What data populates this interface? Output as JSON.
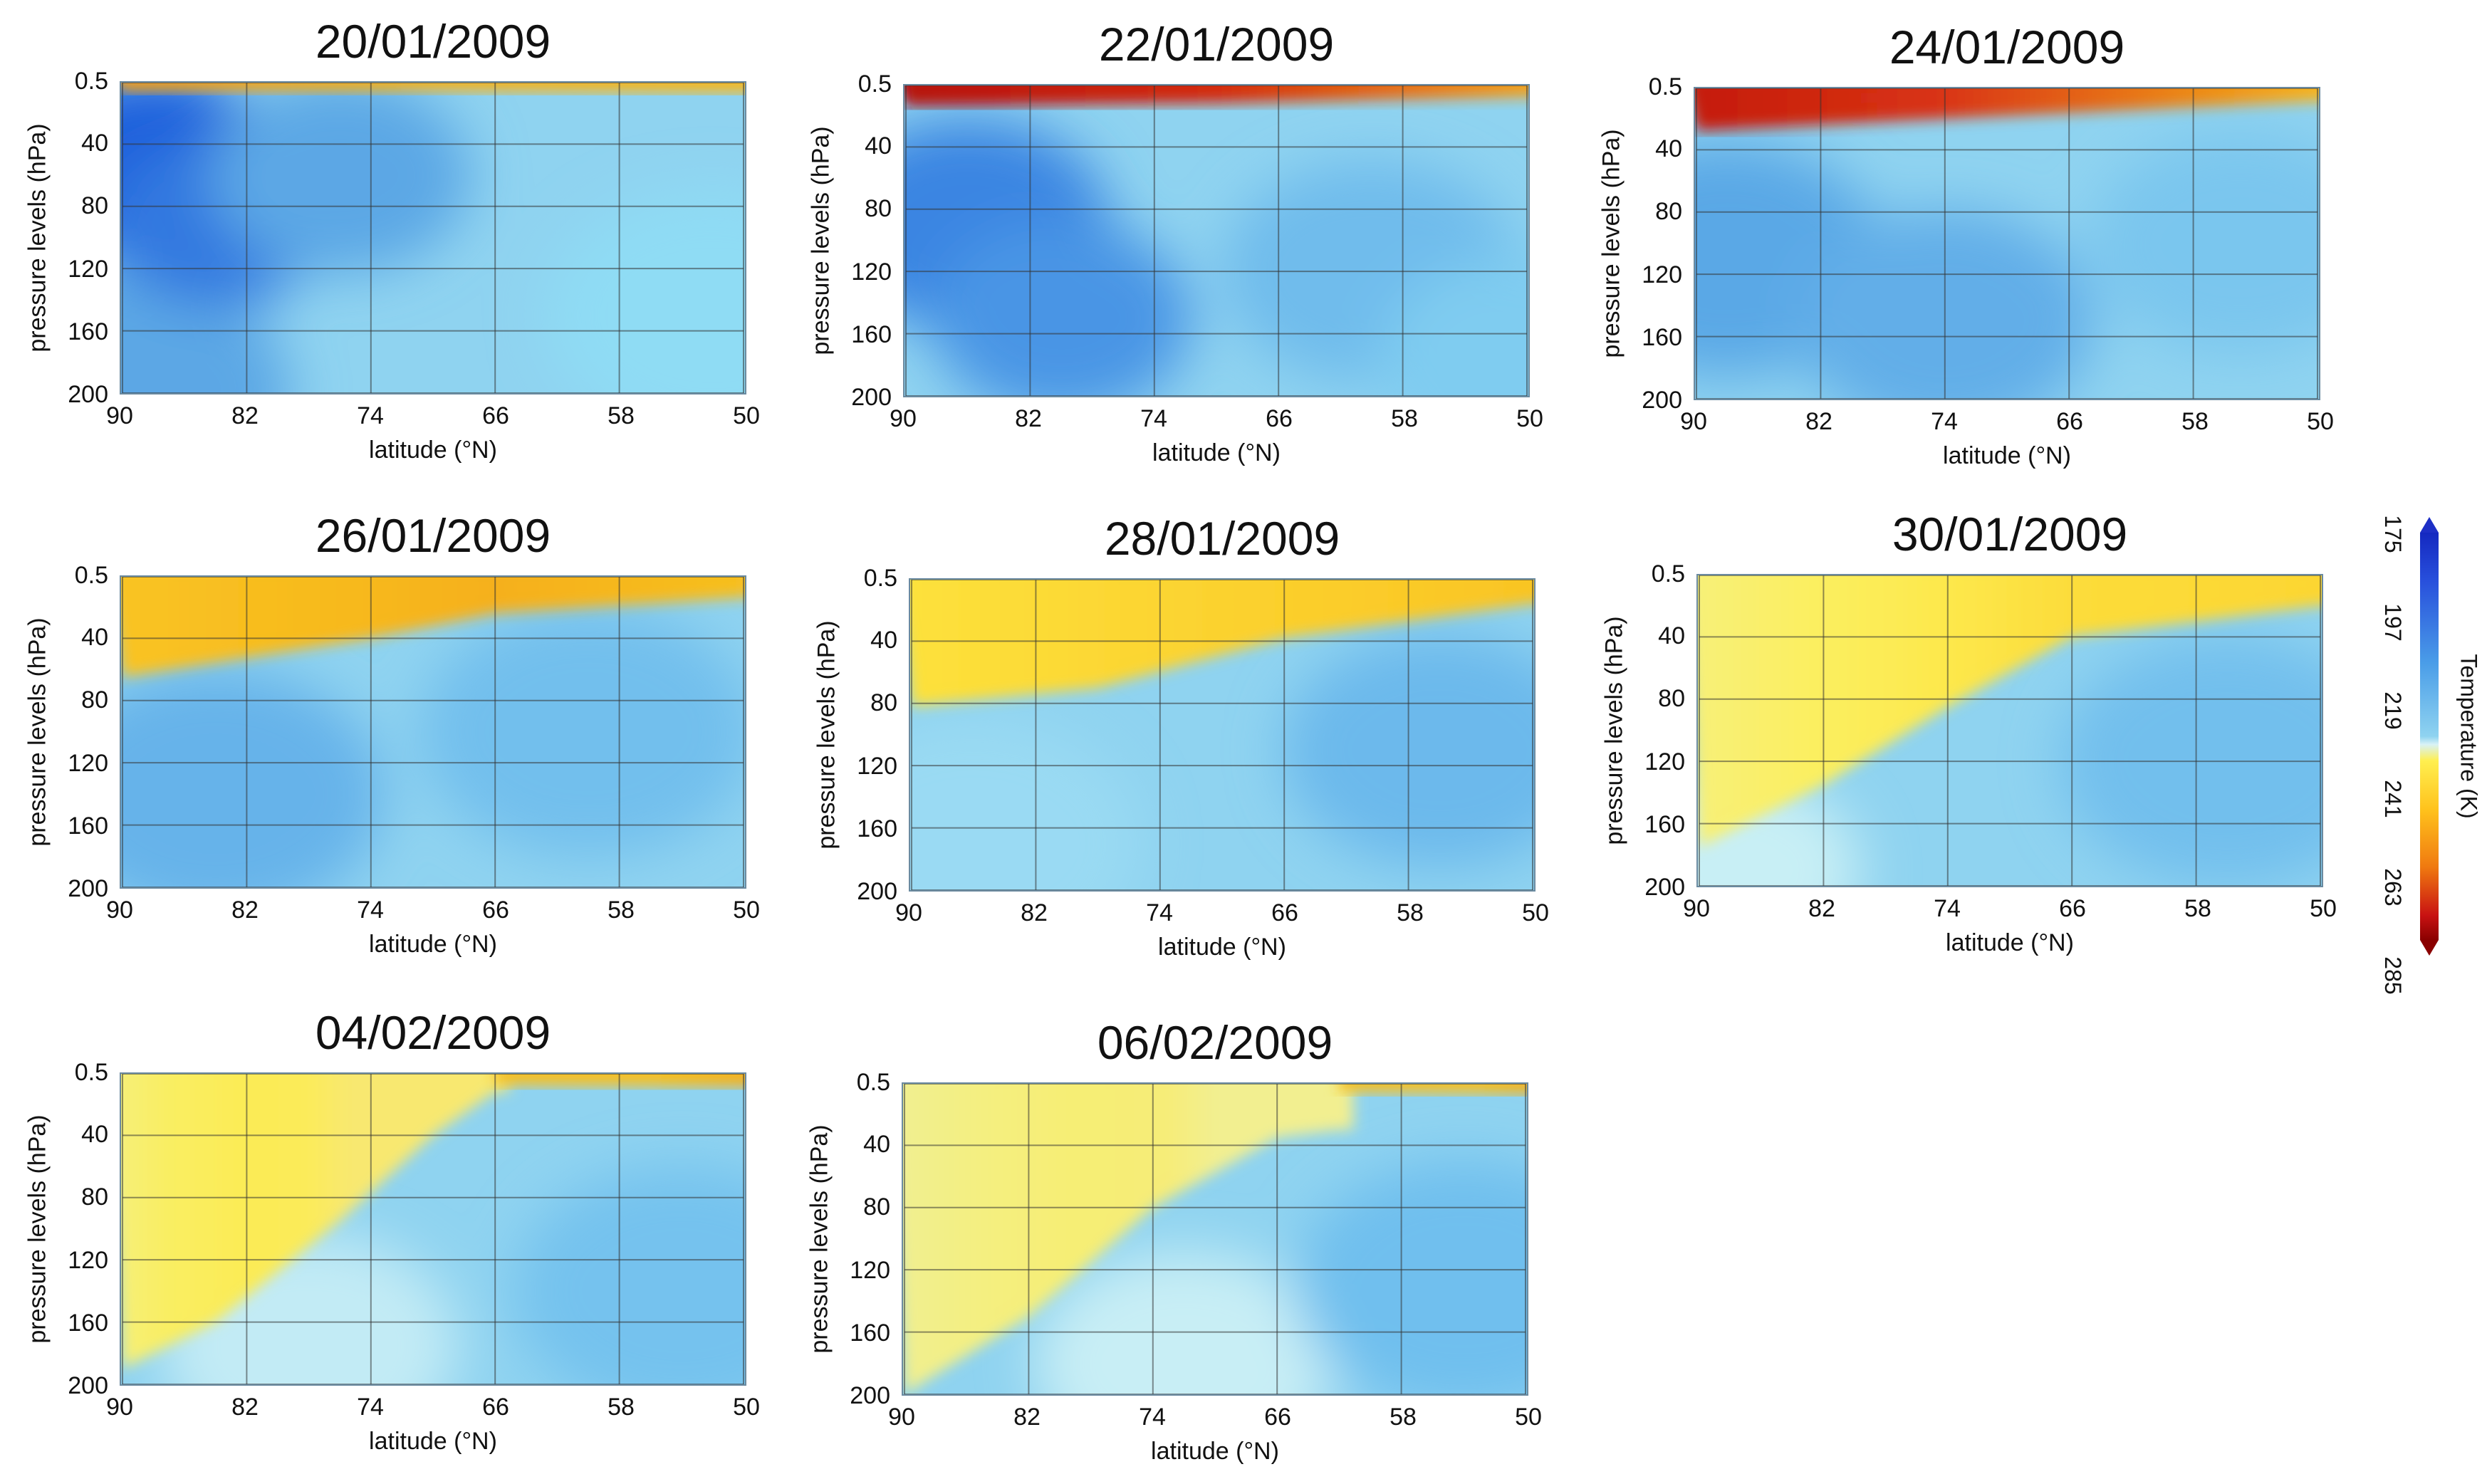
{
  "figure": {
    "colorbar": {
      "label": "Temperature (K)",
      "ticks": [
        "175",
        "197",
        "219",
        "241",
        "263",
        "285"
      ],
      "colors": [
        "#1428c0",
        "#2850dc",
        "#4a9de8",
        "#8fd3f0",
        "#d8f2f6",
        "#ffef50",
        "#ffc21c",
        "#f07a10",
        "#c81212",
        "#8a0000"
      ]
    }
  },
  "chart_data": [
    {
      "type": "heatmap",
      "title": "20/01/2009",
      "xlabel": "latitude (°N)",
      "ylabel": "pressure levels (hPa)",
      "x_ticks": [
        "90",
        "82",
        "74",
        "66",
        "58",
        "50"
      ],
      "y_ticks": [
        "0.5",
        "40",
        "80",
        "120",
        "160",
        "200"
      ],
      "xlim": [
        90,
        50
      ],
      "ylim": [
        0.5,
        200
      ],
      "blobs": [
        {
          "lat": 90,
          "p": 200,
          "color": "#5ba7e5",
          "r": 0.45
        },
        {
          "lat": 88,
          "p": 55,
          "color": "#1f5fdc",
          "r": 0.34
        },
        {
          "lat": 84,
          "p": 90,
          "color": "#3078e0",
          "r": 0.3
        },
        {
          "lat": 76,
          "p": 60,
          "color": "#5ba7e5",
          "r": 0.35
        },
        {
          "lat": 52,
          "p": 150,
          "color": "#8fdcf4",
          "r": 0.45
        }
      ],
      "warm_layer": [
        {
          "lat": 90,
          "p": 6,
          "color": "#f29a15"
        },
        {
          "lat": 70,
          "p": 6,
          "color": "#f5b21a"
        },
        {
          "lat": 50,
          "p": 7,
          "color": "#f7b81c"
        }
      ]
    },
    {
      "type": "heatmap",
      "title": "22/01/2009",
      "xlabel": "latitude (°N)",
      "ylabel": "pressure levels (hPa)",
      "x_ticks": [
        "90",
        "82",
        "74",
        "66",
        "58",
        "50"
      ],
      "y_ticks": [
        "0.5",
        "40",
        "80",
        "120",
        "160",
        "200"
      ],
      "xlim": [
        90,
        50
      ],
      "ylim": [
        0.5,
        200
      ],
      "blobs": [
        {
          "lat": 86,
          "p": 90,
          "color": "#3a85e2",
          "r": 0.38
        },
        {
          "lat": 80,
          "p": 150,
          "color": "#4a95e5",
          "r": 0.35
        },
        {
          "lat": 60,
          "p": 120,
          "color": "#6fbcec",
          "r": 0.4
        },
        {
          "lat": 50,
          "p": 180,
          "color": "#7fccf0",
          "r": 0.4
        }
      ],
      "warm_layer": [
        {
          "lat": 90,
          "p": 14,
          "color": "#b51010"
        },
        {
          "lat": 70,
          "p": 12,
          "color": "#d42a0e"
        },
        {
          "lat": 50,
          "p": 8,
          "color": "#f5a416"
        }
      ]
    },
    {
      "type": "heatmap",
      "title": "24/01/2009",
      "xlabel": "latitude (°N)",
      "ylabel": "pressure levels (hPa)",
      "x_ticks": [
        "90",
        "82",
        "74",
        "66",
        "58",
        "50"
      ],
      "y_ticks": [
        "0.5",
        "40",
        "80",
        "120",
        "160",
        "200"
      ],
      "xlim": [
        90,
        50
      ],
      "ylim": [
        0.5,
        200
      ],
      "blobs": [
        {
          "lat": 88,
          "p": 110,
          "color": "#5aa8e6",
          "r": 0.42
        },
        {
          "lat": 74,
          "p": 150,
          "color": "#62aee8",
          "r": 0.4
        },
        {
          "lat": 55,
          "p": 100,
          "color": "#7ac6ee",
          "r": 0.4
        }
      ],
      "warm_layer": [
        {
          "lat": 90,
          "p": 28,
          "color": "#c41a10"
        },
        {
          "lat": 74,
          "p": 20,
          "color": "#d93412"
        },
        {
          "lat": 50,
          "p": 9,
          "color": "#f7b81c"
        }
      ]
    },
    {
      "type": "heatmap",
      "title": "26/01/2009",
      "xlabel": "latitude (°N)",
      "ylabel": "pressure levels (hPa)",
      "x_ticks": [
        "90",
        "82",
        "74",
        "66",
        "58",
        "50"
      ],
      "y_ticks": [
        "0.5",
        "40",
        "80",
        "120",
        "160",
        "200"
      ],
      "xlim": [
        90,
        50
      ],
      "ylim": [
        0.5,
        200
      ],
      "blobs": [
        {
          "lat": 84,
          "p": 140,
          "color": "#66b3ea",
          "r": 0.45
        },
        {
          "lat": 60,
          "p": 100,
          "color": "#72bfed",
          "r": 0.45
        }
      ],
      "warm_layer": [
        {
          "lat": 90,
          "p": 65,
          "color": "#f9c423"
        },
        {
          "lat": 74,
          "p": 40,
          "color": "#f7b81c"
        },
        {
          "lat": 66,
          "p": 24,
          "color": "#f5b01a"
        },
        {
          "lat": 50,
          "p": 14,
          "color": "#f7c020"
        }
      ]
    },
    {
      "type": "heatmap",
      "title": "28/01/2009",
      "xlabel": "latitude (°N)",
      "ylabel": "pressure levels (hPa)",
      "x_ticks": [
        "90",
        "82",
        "74",
        "66",
        "58",
        "50"
      ],
      "y_ticks": [
        "0.5",
        "40",
        "80",
        "120",
        "160",
        "200"
      ],
      "xlim": [
        90,
        50
      ],
      "ylim": [
        0.5,
        200
      ],
      "blobs": [
        {
          "lat": 86,
          "p": 170,
          "color": "#9adaf3",
          "r": 0.45
        },
        {
          "lat": 56,
          "p": 110,
          "color": "#6cb9ec",
          "r": 0.42
        }
      ],
      "warm_layer": [
        {
          "lat": 90,
          "p": 82,
          "color": "#fde23c"
        },
        {
          "lat": 78,
          "p": 70,
          "color": "#fcd834"
        },
        {
          "lat": 66,
          "p": 38,
          "color": "#fbcf2c"
        },
        {
          "lat": 50,
          "p": 16,
          "color": "#f9c423"
        }
      ]
    },
    {
      "type": "heatmap",
      "title": "30/01/2009",
      "xlabel": "latitude (°N)",
      "ylabel": "pressure levels (hPa)",
      "x_ticks": [
        "90",
        "82",
        "74",
        "66",
        "58",
        "50"
      ],
      "y_ticks": [
        "0.5",
        "40",
        "80",
        "120",
        "160",
        "200"
      ],
      "xlim": [
        90,
        50
      ],
      "ylim": [
        0.5,
        200
      ],
      "blobs": [
        {
          "lat": 88,
          "p": 190,
          "color": "#c8eff5",
          "r": 0.35
        },
        {
          "lat": 56,
          "p": 120,
          "color": "#72bfed",
          "r": 0.45
        }
      ],
      "warm_layer": [
        {
          "lat": 90,
          "p": 175,
          "color": "#f7f07a"
        },
        {
          "lat": 82,
          "p": 135,
          "color": "#fbef60"
        },
        {
          "lat": 74,
          "p": 85,
          "color": "#fde84c"
        },
        {
          "lat": 66,
          "p": 40,
          "color": "#fcdc3a"
        },
        {
          "lat": 50,
          "p": 20,
          "color": "#fcd632"
        }
      ]
    },
    {
      "type": "heatmap",
      "title": "04/02/2009",
      "xlabel": "latitude (°N)",
      "ylabel": "pressure levels (hPa)",
      "x_ticks": [
        "90",
        "82",
        "74",
        "66",
        "58",
        "50"
      ],
      "y_ticks": [
        "0.5",
        "40",
        "80",
        "120",
        "160",
        "200"
      ],
      "xlim": [
        90,
        50
      ],
      "ylim": [
        0.5,
        200
      ],
      "blobs": [
        {
          "lat": 90,
          "p": 10,
          "color": "#bfeaf6",
          "r": 0.45
        },
        {
          "lat": 78,
          "p": 175,
          "color": "#c2ebf5",
          "r": 0.4
        },
        {
          "lat": 54,
          "p": 140,
          "color": "#74c2ee",
          "r": 0.45
        }
      ],
      "warm_layer": [
        {
          "lat": 90,
          "p": 190,
          "color": "#f6f07c"
        },
        {
          "lat": 84,
          "p": 160,
          "color": "#f9ee62"
        },
        {
          "lat": 76,
          "p": 95,
          "color": "#fbeb55"
        },
        {
          "lat": 70,
          "p": 40,
          "color": "#fbeb5a"
        },
        {
          "lat": 66,
          "p": 12,
          "color": "#f8e870"
        }
      ],
      "top_streak": [
        {
          "lat": 66,
          "p": 8,
          "color": "#f7c020"
        },
        {
          "lat": 50,
          "p": 9,
          "color": "#f5b01a"
        }
      ]
    },
    {
      "type": "heatmap",
      "title": "06/02/2009",
      "xlabel": "latitude (°N)",
      "ylabel": "pressure levels (hPa)",
      "x_ticks": [
        "90",
        "82",
        "74",
        "66",
        "58",
        "50"
      ],
      "y_ticks": [
        "0.5",
        "40",
        "80",
        "120",
        "160",
        "200"
      ],
      "xlim": [
        90,
        50
      ],
      "ylim": [
        0.5,
        200
      ],
      "blobs": [
        {
          "lat": 90,
          "p": 12,
          "color": "#bfe8f6",
          "r": 0.45
        },
        {
          "lat": 72,
          "p": 180,
          "color": "#c8eef5",
          "r": 0.4
        },
        {
          "lat": 54,
          "p": 130,
          "color": "#70bfee",
          "r": 0.45
        }
      ],
      "warm_layer": [
        {
          "lat": 90,
          "p": 200,
          "color": "#f0ef92"
        },
        {
          "lat": 82,
          "p": 150,
          "color": "#f4ef80"
        },
        {
          "lat": 74,
          "p": 80,
          "color": "#f6ee74"
        },
        {
          "lat": 66,
          "p": 35,
          "color": "#f6ec78"
        },
        {
          "lat": 62,
          "p": 30,
          "color": "#f2ef90"
        }
      ],
      "top_streak": [
        {
          "lat": 62,
          "p": 6,
          "color": "#f7c020"
        },
        {
          "lat": 50,
          "p": 7,
          "color": "#f5b01a"
        }
      ]
    }
  ]
}
